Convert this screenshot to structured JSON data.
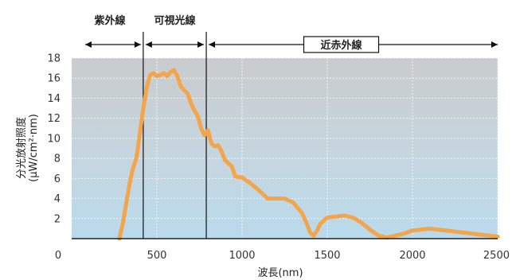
{
  "chart_data": {
    "type": "line",
    "title": "",
    "xlabel": "波長(nm)",
    "ylabel": "分光放射照度\n(μW/cm²·nm)",
    "xlim": [
      0,
      2500
    ],
    "ylim": [
      0,
      18
    ],
    "grid": true,
    "x_ticks": [
      0,
      500,
      1000,
      1500,
      2000,
      2500
    ],
    "y_ticks": [
      2,
      4,
      6,
      8,
      10,
      12,
      14,
      16,
      18
    ],
    "region_dividers": [
      420,
      790
    ],
    "regions": [
      {
        "label": "紫外線",
        "from": 0,
        "to": 420,
        "boxed": false
      },
      {
        "label": "可視光線",
        "from": 420,
        "to": 790,
        "boxed": false
      },
      {
        "label": "近赤外線",
        "from": 790,
        "to": 2500,
        "boxed": true
      }
    ],
    "series": [
      {
        "color": "#f2a54a",
        "x": [
          280,
          300,
          320,
          340,
          360,
          380,
          400,
          420,
          440,
          460,
          480,
          500,
          520,
          540,
          560,
          580,
          600,
          620,
          640,
          660,
          680,
          700,
          720,
          740,
          760,
          780,
          800,
          820,
          840,
          860,
          880,
          900,
          920,
          940,
          960,
          1000,
          1050,
          1100,
          1150,
          1200,
          1250,
          1300,
          1350,
          1380,
          1400,
          1420,
          1440,
          1460,
          1500,
          1550,
          1600,
          1650,
          1700,
          1750,
          1800,
          1850,
          1900,
          1950,
          2000,
          2050,
          2100,
          2150,
          2200,
          2250,
          2300,
          2350,
          2400,
          2450,
          2500
        ],
        "y": [
          0,
          1.5,
          3.5,
          5.5,
          7,
          8,
          10.5,
          13,
          15,
          16.3,
          16.5,
          16.2,
          16.3,
          16.5,
          16.2,
          16.6,
          16.8,
          16.2,
          15.2,
          14.8,
          14.5,
          13.5,
          12.8,
          12.2,
          11,
          10.3,
          10.8,
          9.5,
          9.2,
          9.3,
          8.7,
          7.8,
          7.5,
          7.2,
          6.2,
          6.1,
          5.5,
          4.8,
          4.0,
          4.0,
          4.0,
          3.6,
          2.6,
          1.5,
          0.6,
          0.3,
          0.8,
          1.5,
          2.1,
          2.2,
          2.3,
          2.1,
          1.6,
          0.9,
          0.3,
          0.1,
          0.3,
          0.5,
          0.8,
          0.9,
          1.0,
          0.9,
          0.8,
          0.7,
          0.6,
          0.5,
          0.4,
          0.3,
          0.2
        ]
      }
    ]
  }
}
